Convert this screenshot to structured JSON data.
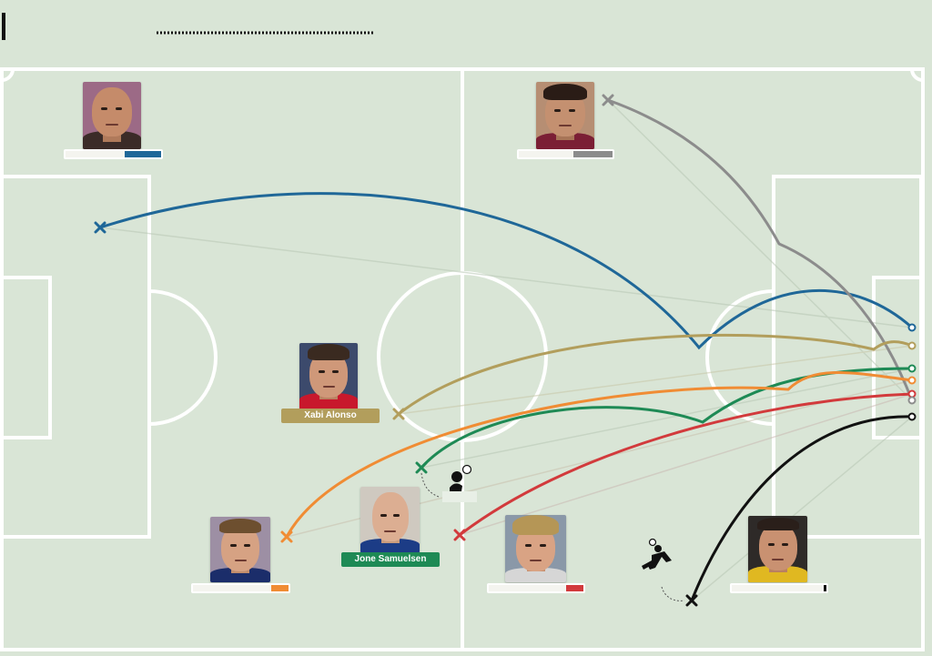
{
  "players": {
    "alonso": {
      "name": "Xabi Alonso"
    },
    "samuelsen": {
      "name": "Jone Samuelsen"
    }
  },
  "colors": {
    "pitch": "#d9e5d6",
    "lines": "#ffffff",
    "blue": "#1f6798",
    "gray": "#8c8c8c",
    "gold": "#b29e5c",
    "orange": "#f08c34",
    "green": "#1e8a55",
    "red": "#d23a3c",
    "black": "#111111"
  },
  "icons": [
    "goal-bicycle-kick-icon",
    "header-player-icon",
    "shot-origin-x-icon",
    "goal-end-dot-icon"
  ]
}
